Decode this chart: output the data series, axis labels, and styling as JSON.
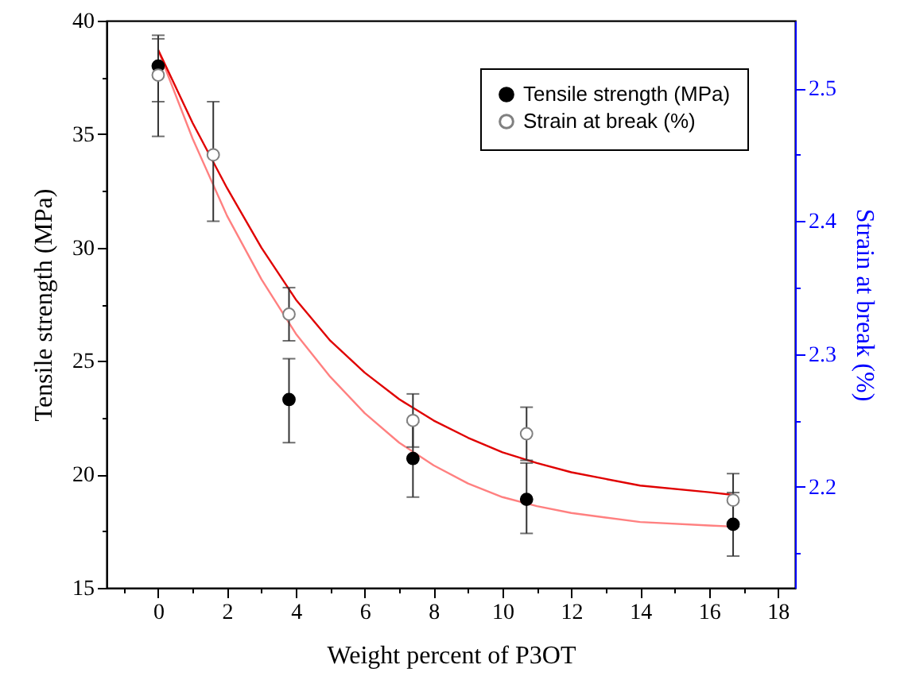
{
  "chart_data": {
    "type": "scatter",
    "xlabel": "Weight percent of P3OT",
    "ylabel": "Tensile strength (MPa)",
    "y2label": "Strain at break (%)",
    "xlim": [
      -1.5,
      18.5
    ],
    "xticks": [
      {
        "value": -1,
        "label": null
      },
      0,
      {
        "value": 1,
        "label": null
      },
      2,
      {
        "value": 3,
        "label": null
      },
      4,
      {
        "value": 5,
        "label": null
      },
      6,
      {
        "value": 7,
        "label": null
      },
      8,
      {
        "value": 9,
        "label": null
      },
      10,
      {
        "value": 11,
        "label": null
      },
      12,
      {
        "value": 13,
        "label": null
      },
      14,
      {
        "value": 15,
        "label": null
      },
      16,
      {
        "value": 17,
        "label": null
      },
      18
    ],
    "ylim": [
      15,
      40
    ],
    "yticks": [
      15,
      {
        "value": 17.5,
        "label": null
      },
      20,
      {
        "value": 22.5,
        "label": null
      },
      25,
      {
        "value": 27.5,
        "label": null
      },
      30,
      {
        "value": 32.5,
        "label": null
      },
      35,
      {
        "value": 37.5,
        "label": null
      },
      40
    ],
    "y2lim": [
      2.124,
      2.551
    ],
    "y2ticks": [
      {
        "value": 2.15,
        "label": null
      },
      2.2,
      {
        "value": 2.25,
        "label": null
      },
      2.3,
      {
        "value": 2.35,
        "label": null
      },
      2.4,
      {
        "value": 2.45,
        "label": null
      },
      2.5
    ],
    "grid": false,
    "legend": "top right",
    "marker": "circle",
    "series": [
      {
        "type": "line",
        "marker": "none",
        "axis": "y",
        "color": "#ff8080",
        "x": [
          0,
          1,
          2,
          3,
          4,
          5,
          6,
          7,
          8,
          9,
          10,
          11,
          12,
          13,
          14,
          16,
          16.7
        ],
        "values": [
          38.7,
          34.8,
          31.4,
          28.6,
          26.2,
          24.3,
          22.7,
          21.4,
          20.4,
          19.6,
          19.0,
          18.6,
          18.3,
          18.1,
          17.9,
          17.75,
          17.7
        ]
      },
      {
        "type": "line",
        "marker": "none",
        "axis": "y2",
        "color": "#e00000",
        "x": [
          0,
          1,
          2,
          3,
          4,
          5,
          6,
          7,
          8,
          9,
          10,
          11,
          12,
          13,
          14,
          16,
          16.7
        ],
        "values": [
          2.529,
          2.474,
          2.425,
          2.38,
          2.341,
          2.31,
          2.286,
          2.266,
          2.25,
          2.237,
          2.226,
          2.218,
          2.211,
          2.206,
          2.201,
          2.196,
          2.194
        ]
      },
      {
        "name": "Tensile strength (MPa)",
        "axis": "y",
        "color": "#000000",
        "x": [
          0,
          1.6,
          3.8,
          7.4,
          10.7,
          16.7
        ],
        "values": [
          38.0,
          null,
          23.3,
          20.7,
          18.9,
          17.8
        ],
        "errors": [
          [
            34.9,
            39.2
          ],
          null,
          [
            21.4,
            25.1
          ],
          [
            19.0,
            22.3
          ],
          [
            17.4,
            20.5
          ],
          [
            16.4,
            19.2
          ]
        ]
      },
      {
        "name": "Strain at break (%)",
        "axis": "y2",
        "color": "#808080",
        "x": [
          0,
          1.6,
          3.8,
          7.4,
          10.7,
          16.7
        ],
        "values": [
          2.51,
          2.45,
          2.33,
          2.25,
          2.24,
          2.19
        ],
        "errors": [
          [
            2.49,
            2.54
          ],
          [
            2.4,
            2.49
          ],
          [
            2.31,
            2.35
          ],
          [
            2.23,
            2.27
          ],
          [
            2.22,
            2.26
          ],
          [
            2.17,
            2.21
          ]
        ]
      }
    ]
  }
}
